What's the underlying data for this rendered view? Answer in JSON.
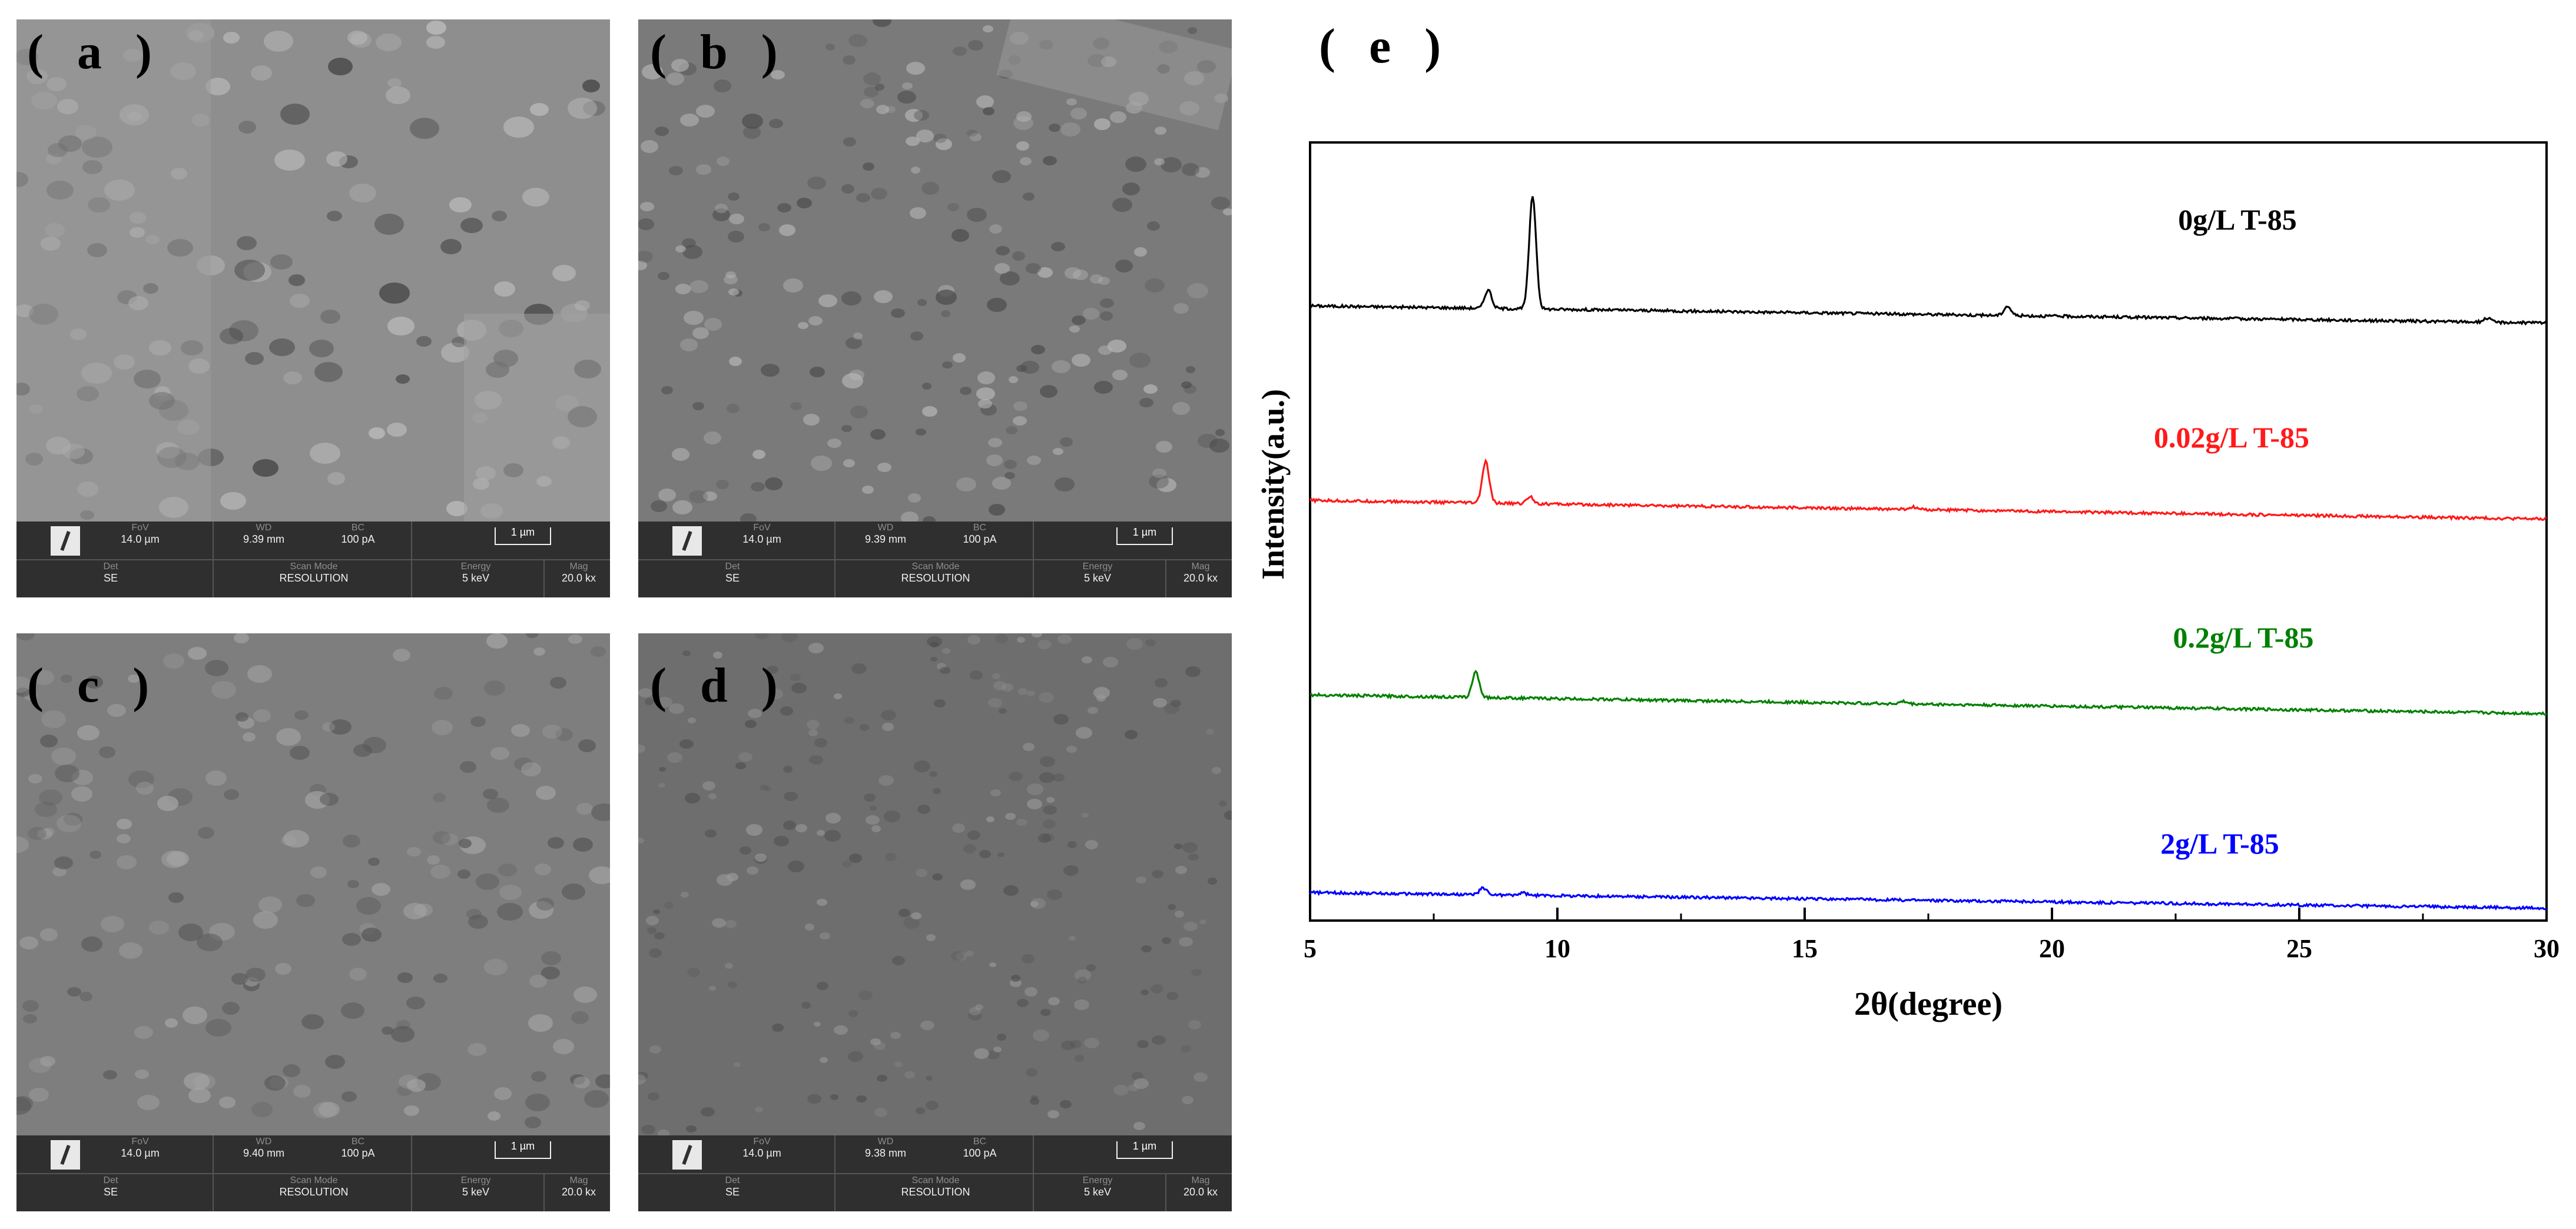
{
  "panels": [
    {
      "label": "( a )",
      "fov": "14.0 µm",
      "wd": "9.39 mm",
      "bc": "100 pA",
      "scale": "1 µm",
      "det": "SE",
      "scan_mode": "RESOLUTION",
      "energy": "5 keV",
      "mag": "20.0 kx"
    },
    {
      "label": "( b )",
      "fov": "14.0 µm",
      "wd": "9.39 mm",
      "bc": "100 pA",
      "scale": "1 µm",
      "det": "SE",
      "scan_mode": "RESOLUTION",
      "energy": "5 keV",
      "mag": "20.0 kx"
    },
    {
      "label": "( c )",
      "fov": "14.0 µm",
      "wd": "9.40 mm",
      "bc": "100 pA",
      "scale": "1 µm",
      "det": "SE",
      "scan_mode": "RESOLUTION",
      "energy": "5 keV",
      "mag": "20.0 kx"
    },
    {
      "label": "( d )",
      "fov": "14.0 µm",
      "wd": "9.38 mm",
      "bc": "100 pA",
      "scale": "1 µm",
      "det": "SE",
      "scan_mode": "RESOLUTION",
      "energy": "5 keV",
      "mag": "20.0 kx"
    }
  ],
  "bar_labels": {
    "fov": "FoV",
    "wd": "WD",
    "bc": "BC",
    "det": "Det",
    "scan_mode": "Scan Mode",
    "energy": "Energy",
    "mag": "Mag"
  },
  "chart_label": "( e )",
  "chart_data": {
    "type": "line",
    "title": "",
    "xlabel": "2θ(degree)",
    "ylabel": "Intensity(a.u.)",
    "xlim": [
      5,
      30
    ],
    "xticks": [
      "5",
      "10",
      "15",
      "20",
      "25",
      "30"
    ],
    "ylim": [
      0,
      100
    ],
    "series": [
      {
        "name": "0g/L T-85",
        "color": "#000000",
        "baseline": [
          [
            5,
            79
          ],
          [
            30,
            76.8
          ]
        ],
        "peaks": [
          [
            8.6,
            2.4
          ],
          [
            9.5,
            14.5
          ],
          [
            19.1,
            1.2
          ],
          [
            28.8,
            0.5
          ]
        ]
      },
      {
        "name": "0.02g/L T-85",
        "color": "#ff1a1a",
        "baseline": [
          [
            5,
            54
          ],
          [
            30,
            51.6
          ]
        ],
        "peaks": [
          [
            8.55,
            5.3
          ],
          [
            9.45,
            0.9
          ],
          [
            17.2,
            0.3
          ]
        ]
      },
      {
        "name": "0.2g/L T-85",
        "color": "#008000",
        "baseline": [
          [
            5,
            29
          ],
          [
            30,
            26.6
          ]
        ],
        "peaks": [
          [
            8.35,
            3.3
          ],
          [
            17.0,
            0.3
          ]
        ]
      },
      {
        "name": "2g/L T-85",
        "color": "#0000ff",
        "baseline": [
          [
            5,
            3.6
          ],
          [
            30,
            1.6
          ]
        ],
        "peaks": [
          [
            8.5,
            0.9
          ],
          [
            9.3,
            0.3
          ]
        ]
      }
    ]
  }
}
